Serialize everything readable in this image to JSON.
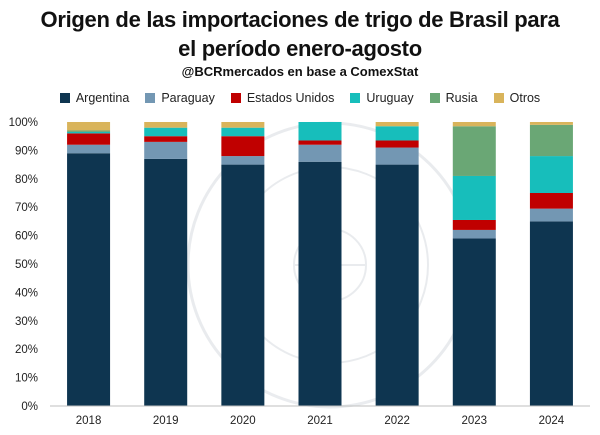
{
  "chart_data": {
    "type": "bar",
    "stacked": true,
    "title": "Origen de las importaciones de trigo de Brasil para",
    "title_line2": "el período enero-agosto",
    "subtitle": "@BCRmercados en base a ComexStat",
    "categories": [
      "2018",
      "2019",
      "2020",
      "2021",
      "2022",
      "2023",
      "2024"
    ],
    "series": [
      {
        "name": "Argentina",
        "color": "#0e3550",
        "values": [
          89,
          87,
          85,
          86,
          85,
          59,
          65
        ]
      },
      {
        "name": "Paraguay",
        "color": "#7397b3",
        "values": [
          3,
          6,
          3,
          6,
          6,
          3,
          4.5
        ]
      },
      {
        "name": "Estados Unidos",
        "color": "#c00000",
        "values": [
          4,
          2,
          7,
          1.5,
          2.5,
          3.5,
          5.5
        ]
      },
      {
        "name": "Uruguay",
        "color": "#17bebb",
        "values": [
          0.5,
          3,
          3,
          6.5,
          5,
          15.5,
          13
        ]
      },
      {
        "name": "Rusia",
        "color": "#6aa775",
        "values": [
          0.5,
          0,
          0,
          0,
          0,
          17.5,
          11
        ]
      },
      {
        "name": "Otros",
        "color": "#d9b45b",
        "values": [
          3,
          2,
          2,
          0,
          1.5,
          1.5,
          1
        ]
      }
    ],
    "yticks": [
      "0%",
      "10%",
      "20%",
      "30%",
      "40%",
      "50%",
      "60%",
      "70%",
      "80%",
      "90%",
      "100%"
    ],
    "ylim": [
      0,
      100
    ],
    "xlabel": "",
    "ylabel": "",
    "legend_position": "top",
    "grid": false
  }
}
